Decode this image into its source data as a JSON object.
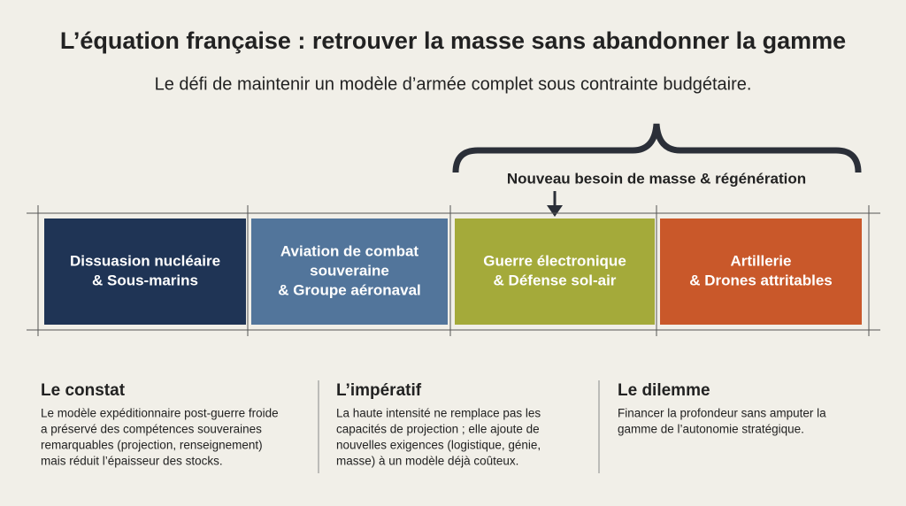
{
  "header": {
    "title": "L’équation française : retrouver la masse sans abandonner la gamme",
    "subtitle": "Le défi de maintenir un modèle d’armée complet sous contrainte budgétaire."
  },
  "bracket": {
    "label": "Nouveau besoin de masse & régénération"
  },
  "blocks": [
    {
      "lines": [
        "Dissuasion nucléaire",
        "& Sous-marins"
      ]
    },
    {
      "lines": [
        "Aviation de combat",
        "souveraine",
        "& Groupe aéronaval"
      ]
    },
    {
      "lines": [
        "Guerre électronique",
        "& Défense sol-air"
      ]
    },
    {
      "lines": [
        "Artillerie",
        "& Drones attritables"
      ]
    }
  ],
  "columns": [
    {
      "title": "Le constat",
      "lines": [
        "Le modèle expéditionnaire post-guerre froide",
        "a préservé des compétences souveraines",
        "remarquables (projection, renseignement)",
        "mais réduit l’épaisseur des stocks."
      ]
    },
    {
      "title": "L’impératif",
      "lines": [
        "La haute intensité ne remplace pas les",
        "capacités de projection ; elle ajoute de",
        "nouvelles exigences (logistique, génie,",
        "masse) à un modèle déjà coûteux."
      ]
    },
    {
      "title": "Le dilemme",
      "lines": [
        "Financer la profondeur sans amputer la",
        "gamme de l’autonomie stratégique."
      ]
    }
  ]
}
